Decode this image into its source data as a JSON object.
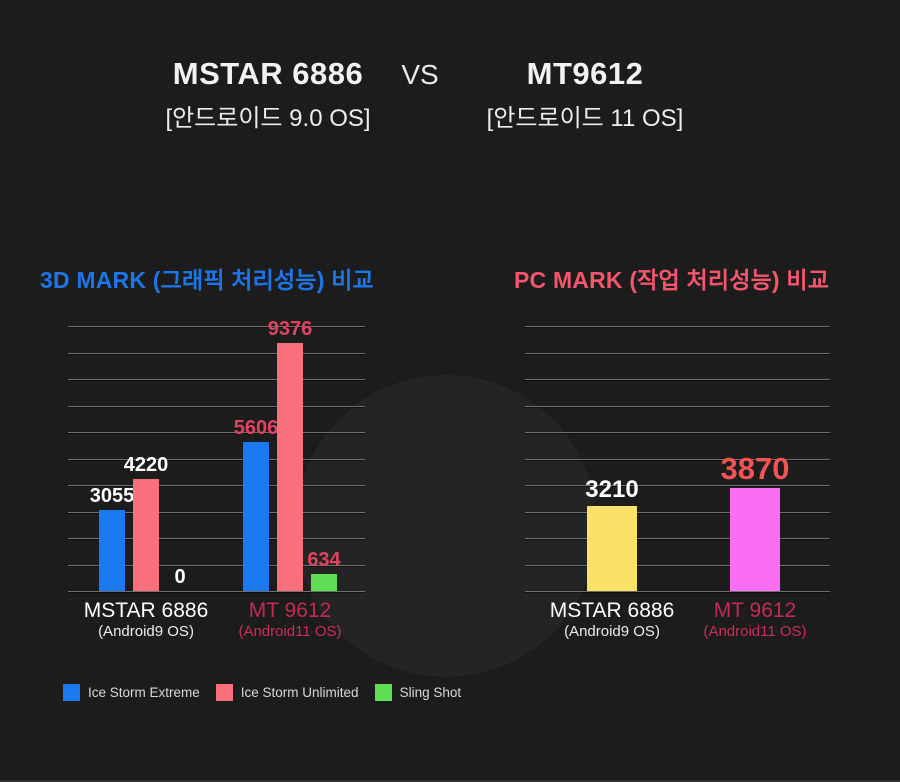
{
  "header": {
    "left_title": "MSTAR 6886",
    "vs": "VS",
    "right_title": "MT9612",
    "left_subtitle": "[안드로이드 9.0 OS]",
    "right_subtitle": "[안드로이드 11 OS]"
  },
  "colors": {
    "background": "#1c1c1d",
    "decorative_circle": "#242425",
    "gridline": "#7e7e7e",
    "title_3dmark": "#1d76e8",
    "title_pcmark": "#f4566c",
    "white": "#ffffff"
  },
  "chart_data": [
    {
      "type": "bar",
      "title": "3D MARK (그래픽 처리성능) 비교",
      "title_color": "#1d76e8",
      "categories": [
        "MSTAR 6886",
        "MT 9612"
      ],
      "category_sublabels": [
        "(Android9 OS)",
        "(Android11 OS)"
      ],
      "category_label_colors": [
        "#ffffff",
        "#c52b50"
      ],
      "category_sublabel_colors": [
        "#ededed",
        "#ce2d56"
      ],
      "series": [
        {
          "name": "Ice Storm Extreme",
          "color": "#1a78f0",
          "values": [
            3055,
            5606
          ]
        },
        {
          "name": "Ice Storm Unlimited",
          "color": "#f8707a",
          "values": [
            4220,
            9376
          ]
        },
        {
          "name": "Sling Shot",
          "color": "#5fe054",
          "values": [
            0,
            634
          ]
        }
      ],
      "value_label_colors": [
        "#ffffff",
        "#df4360"
      ],
      "value_label_sizes": [
        20,
        20
      ],
      "ylim": [
        0,
        10000
      ],
      "grid": {
        "lines": 11,
        "on": true
      },
      "legend_position": "bottom-left"
    },
    {
      "type": "bar",
      "title": "PC MARK (작업 처리성능) 비교",
      "title_color": "#f4566c",
      "categories": [
        "MSTAR 6886",
        "MT 9612"
      ],
      "category_sublabels": [
        "(Android9 OS)",
        "(Android11 OS)"
      ],
      "category_label_colors": [
        "#ffffff",
        "#c52b50"
      ],
      "category_sublabel_colors": [
        "#ededed",
        "#ce2d56"
      ],
      "series": [
        {
          "name": "PC MARK",
          "colors": [
            "#fbe167",
            "#fb6ef2"
          ],
          "values": [
            3210,
            3870
          ]
        }
      ],
      "value_label_colors": [
        "#ffffff",
        "#f25353"
      ],
      "value_label_sizes": [
        24,
        31
      ],
      "ylim": [
        0,
        10000
      ],
      "grid": {
        "lines": 11,
        "on": true
      },
      "legend_position": "none"
    }
  ],
  "legend": {
    "items": [
      "Ice Storm Extreme",
      "Ice Storm Unlimited",
      "Sling Shot"
    ]
  }
}
